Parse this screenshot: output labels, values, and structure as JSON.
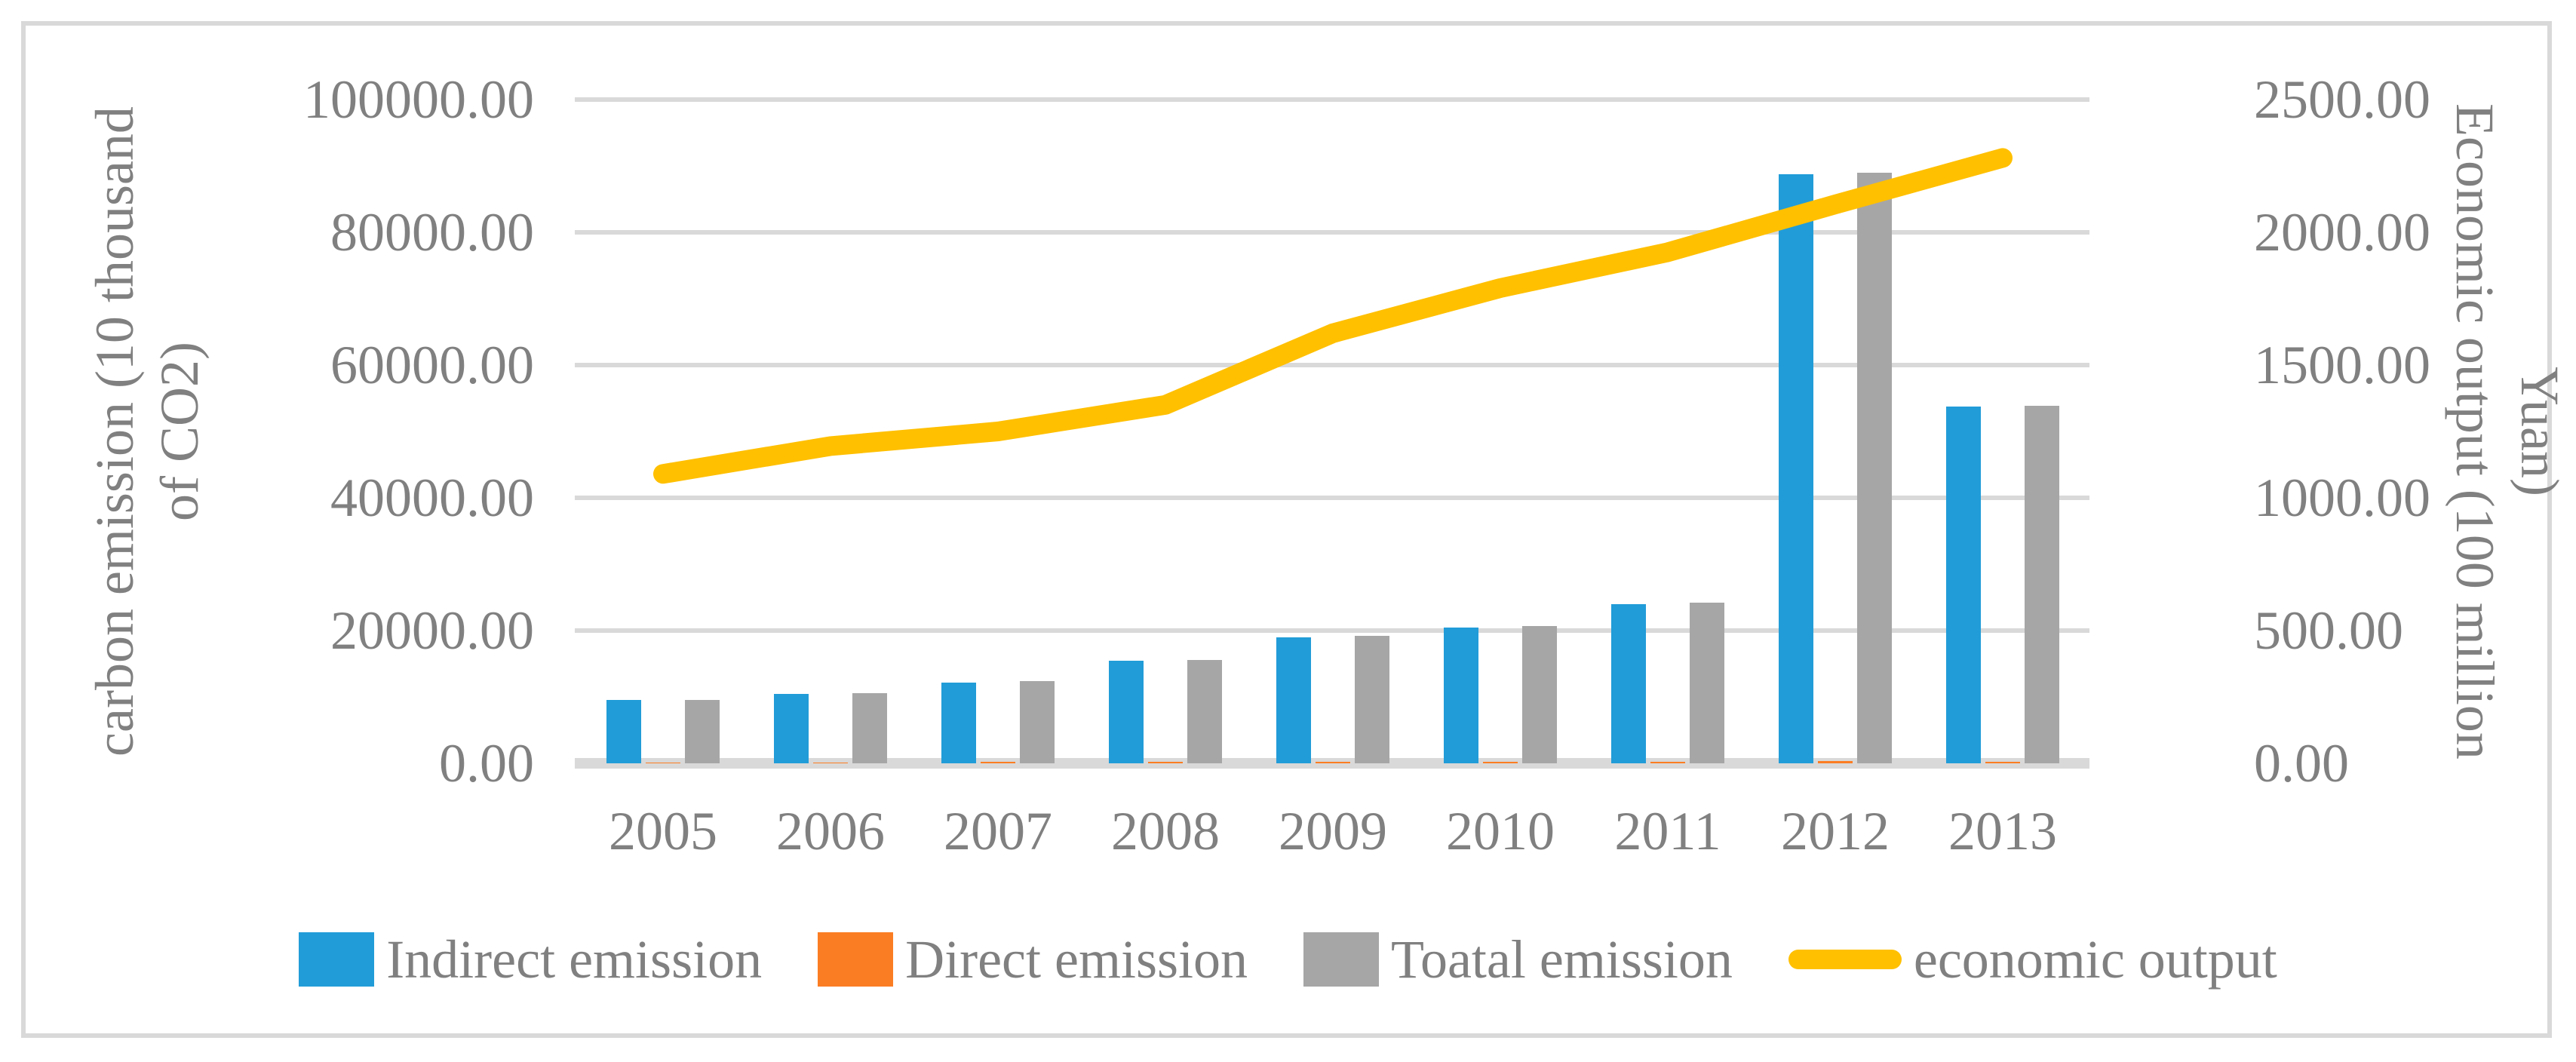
{
  "chart_data": {
    "type": "bar",
    "subtype": "combo-bar-line-dual-axis",
    "categories": [
      "2005",
      "2006",
      "2007",
      "2008",
      "2009",
      "2010",
      "2011",
      "2012",
      "2013"
    ],
    "series": [
      {
        "name": "Indirect emission",
        "kind": "bar",
        "axis": "left",
        "color": "#219CD8",
        "values": [
          9500,
          10500,
          12200,
          15400,
          19000,
          20500,
          24000,
          88700,
          53700
        ]
      },
      {
        "name": "Direct emission",
        "kind": "bar",
        "axis": "left",
        "color": "#FB7D23",
        "values": [
          100,
          100,
          200,
          200,
          200,
          200,
          200,
          300,
          200
        ]
      },
      {
        "name": "Toatal emission",
        "kind": "bar",
        "axis": "left",
        "color": "#A6A6A6",
        "values": [
          9600,
          10600,
          12400,
          15600,
          19200,
          20700,
          24200,
          89000,
          53900
        ]
      },
      {
        "name": "economic output",
        "kind": "line",
        "axis": "right",
        "color": "#FFC000",
        "values": [
          1090,
          1195,
          1250,
          1350,
          1620,
          1790,
          1925,
          2105,
          2280
        ]
      }
    ],
    "left_axis": {
      "label": "carbon emission (10 thousand of CO2)",
      "label_text": "carbon emission (10 thousand\nof CO2)",
      "min": 0,
      "max": 100000,
      "step": 20000,
      "ticks": [
        "0.00",
        "20000.00",
        "40000.00",
        "60000.00",
        "80000.00",
        "100000.00"
      ]
    },
    "right_axis": {
      "label": "Economic output (100 million Yuan)",
      "label_text": "Economic output (100 million\nYuan)",
      "min": 0,
      "max": 2500,
      "step": 500,
      "ticks": [
        "0.00",
        "500.00",
        "1000.00",
        "1500.00",
        "2000.00",
        "2500.00"
      ]
    },
    "grid": true,
    "legend_position": "bottom"
  },
  "legend": {
    "items": [
      {
        "label": "Indirect emission",
        "swatch": "rect",
        "color": "#219CD8"
      },
      {
        "label": "Direct emission",
        "swatch": "rect",
        "color": "#FB7D23"
      },
      {
        "label": "Toatal emission",
        "swatch": "rect",
        "color": "#A6A6A6"
      },
      {
        "label": "economic output",
        "swatch": "line",
        "color": "#FFC000"
      }
    ]
  },
  "colors": {
    "grid": "#D9D9D9",
    "border": "#D9D9D9",
    "axis_text": "#808080",
    "background": "#FFFFFF"
  }
}
